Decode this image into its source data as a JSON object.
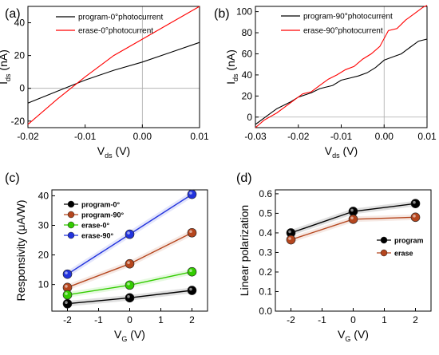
{
  "chart_data": [
    {
      "type": "line",
      "panel_label": "(a)",
      "xlabel_main": "V",
      "xlabel_sub": "ds",
      "xlabel_unit": " (V)",
      "ylabel_main": "I",
      "ylabel_sub": "ds",
      "ylabel_unit": " (nA)",
      "xlim": [
        -0.02,
        0.01
      ],
      "ylim": [
        -24,
        50
      ],
      "xticks": [
        -0.02,
        -0.01,
        0.0,
        0.01
      ],
      "xtick_labels": [
        "-0.02",
        "-0.01",
        "0.00",
        "0.01"
      ],
      "yticks": [
        -20,
        0,
        20,
        40
      ],
      "ytick_labels": [
        "-20",
        "0",
        "20",
        "40"
      ],
      "zero_lines": true,
      "legend_position": "top-left",
      "series": [
        {
          "name": "program-0°photocurrent",
          "color": "#000000",
          "x": [
            -0.02,
            -0.015,
            -0.01,
            -0.005,
            0.0,
            0.005,
            0.01
          ],
          "y": [
            -9,
            -2,
            5,
            11,
            16,
            22,
            28
          ]
        },
        {
          "name": "erase-0°photocurrent",
          "color": "#ff0000",
          "x": [
            -0.02,
            -0.015,
            -0.01,
            -0.005,
            0.0,
            0.005,
            0.01
          ],
          "y": [
            -22,
            -7,
            7,
            20,
            30,
            40,
            50
          ]
        }
      ]
    },
    {
      "type": "line",
      "panel_label": "(b)",
      "xlabel_main": "V",
      "xlabel_sub": "ds",
      "xlabel_unit": " (V)",
      "ylabel_main": "I",
      "ylabel_sub": "ds",
      "ylabel_unit": " (nA)",
      "xlim": [
        -0.03,
        0.01
      ],
      "ylim": [
        -10,
        105
      ],
      "xticks": [
        -0.03,
        -0.02,
        -0.01,
        0.0,
        0.01
      ],
      "xtick_labels": [
        "-0.03",
        "-0.02",
        "-0.01",
        "0.00",
        "0.01"
      ],
      "yticks": [
        0,
        20,
        40,
        60,
        80,
        100
      ],
      "ytick_labels": [
        "0",
        "20",
        "40",
        "60",
        "80",
        "100"
      ],
      "zero_lines": true,
      "legend_position": "top-left",
      "series": [
        {
          "name": "program-90°photocurrent",
          "color": "#000000",
          "x": [
            -0.03,
            -0.027,
            -0.025,
            -0.022,
            -0.02,
            -0.017,
            -0.015,
            -0.012,
            -0.01,
            -0.008,
            -0.006,
            -0.004,
            -0.002,
            0.0,
            0.002,
            0.004,
            0.006,
            0.008,
            0.01
          ],
          "y": [
            -7,
            2,
            8,
            14,
            19,
            23,
            27,
            30,
            35,
            37,
            39,
            42,
            47,
            54,
            57,
            60,
            66,
            72,
            74
          ]
        },
        {
          "name": "erase-90°photocurrent",
          "color": "#ff0000",
          "x": [
            -0.03,
            -0.028,
            -0.025,
            -0.023,
            -0.021,
            -0.019,
            -0.017,
            -0.015,
            -0.013,
            -0.011,
            -0.009,
            -0.007,
            -0.005,
            -0.003,
            -0.001,
            0.001,
            0.003,
            0.005,
            0.007,
            0.009,
            0.01
          ],
          "y": [
            -10,
            -3,
            4,
            10,
            16,
            22,
            24,
            30,
            36,
            40,
            45,
            48,
            55,
            60,
            67,
            82,
            84,
            92,
            98,
            104,
            106
          ]
        }
      ]
    },
    {
      "type": "line",
      "panel_label": "(c)",
      "xlabel_main": "V",
      "xlabel_sub": "G",
      "xlabel_unit": " (V)",
      "ylabel_main": "Responsivity  (μA/W)",
      "xlim": [
        -2.5,
        2.5
      ],
      "ylim": [
        1,
        42
      ],
      "xticks": [
        -2,
        -1,
        0,
        1,
        2
      ],
      "xtick_labels": [
        "-2",
        "-1",
        "0",
        "1",
        "2"
      ],
      "yticks": [
        10,
        20,
        30,
        40
      ],
      "ytick_labels": [
        "10",
        "20",
        "30",
        "40"
      ],
      "legend_position": "top-left",
      "series": [
        {
          "name": "program-0°",
          "color": "#000000",
          "x": [
            -2,
            0,
            2
          ],
          "y": [
            3.5,
            5.5,
            8
          ]
        },
        {
          "name": "program-90°",
          "color": "#b5461e",
          "x": [
            -2,
            0,
            2
          ],
          "y": [
            9,
            17,
            27.5
          ]
        },
        {
          "name": "erase-0°",
          "color": "#33cc00",
          "x": [
            -2,
            0,
            2
          ],
          "y": [
            6.5,
            9.8,
            14.3
          ]
        },
        {
          "name": "erase-90°",
          "color": "#2233dd",
          "x": [
            -2,
            0,
            2
          ],
          "y": [
            13.5,
            27,
            40.5
          ]
        }
      ]
    },
    {
      "type": "line",
      "panel_label": "(d)",
      "xlabel_main": "V",
      "xlabel_sub": "G",
      "xlabel_unit": " (V)",
      "ylabel_main": "Linear polarization",
      "xlim": [
        -2.5,
        2.5
      ],
      "ylim": [
        0.0,
        0.62
      ],
      "xticks": [
        -2,
        -1,
        0,
        1,
        2
      ],
      "xtick_labels": [
        "-2",
        "-1",
        "0",
        "1",
        "2"
      ],
      "yticks": [
        0.0,
        0.1,
        0.2,
        0.3,
        0.4,
        0.5,
        0.6
      ],
      "ytick_labels": [
        "0.0",
        "0.1",
        "0.2",
        "0.3",
        "0.4",
        "0.5",
        "0.6"
      ],
      "legend_position": "center-right",
      "series": [
        {
          "name": "program",
          "color": "#000000",
          "x": [
            -2,
            0,
            2
          ],
          "y": [
            0.4,
            0.51,
            0.55
          ]
        },
        {
          "name": "erase",
          "color": "#b5461e",
          "x": [
            -2,
            0,
            2
          ],
          "y": [
            0.365,
            0.47,
            0.48
          ]
        }
      ]
    }
  ]
}
